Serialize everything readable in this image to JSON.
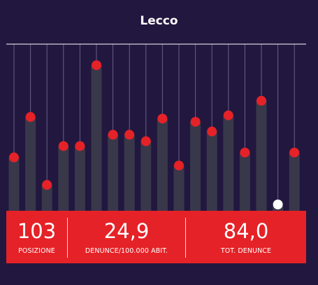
{
  "title": "Lecco",
  "colors": {
    "background": "#22173f",
    "bar": "#38384a",
    "dot": "#e52227",
    "highlight_dot": "#ffffff",
    "stats_background": "#e52227",
    "axis_line": "#ffffff",
    "guide_line": "#6a5f86"
  },
  "stats": [
    {
      "value": "103",
      "label": "POSIZIONE"
    },
    {
      "value": "24,9",
      "label": "DENUNCE/100.000 ABIT."
    },
    {
      "value": "84,0",
      "label": "TOT. DENUNCE"
    }
  ],
  "chart_data": {
    "type": "bar",
    "title": "Lecco",
    "xlabel": "",
    "ylabel": "",
    "ylim": [
      0,
      100
    ],
    "grid": false,
    "legend": "none",
    "values": [
      33,
      58,
      16,
      40,
      40,
      90,
      47,
      47,
      43,
      57,
      28,
      55,
      49,
      59,
      36,
      68,
      3,
      36
    ],
    "highlight_index": 16
  }
}
